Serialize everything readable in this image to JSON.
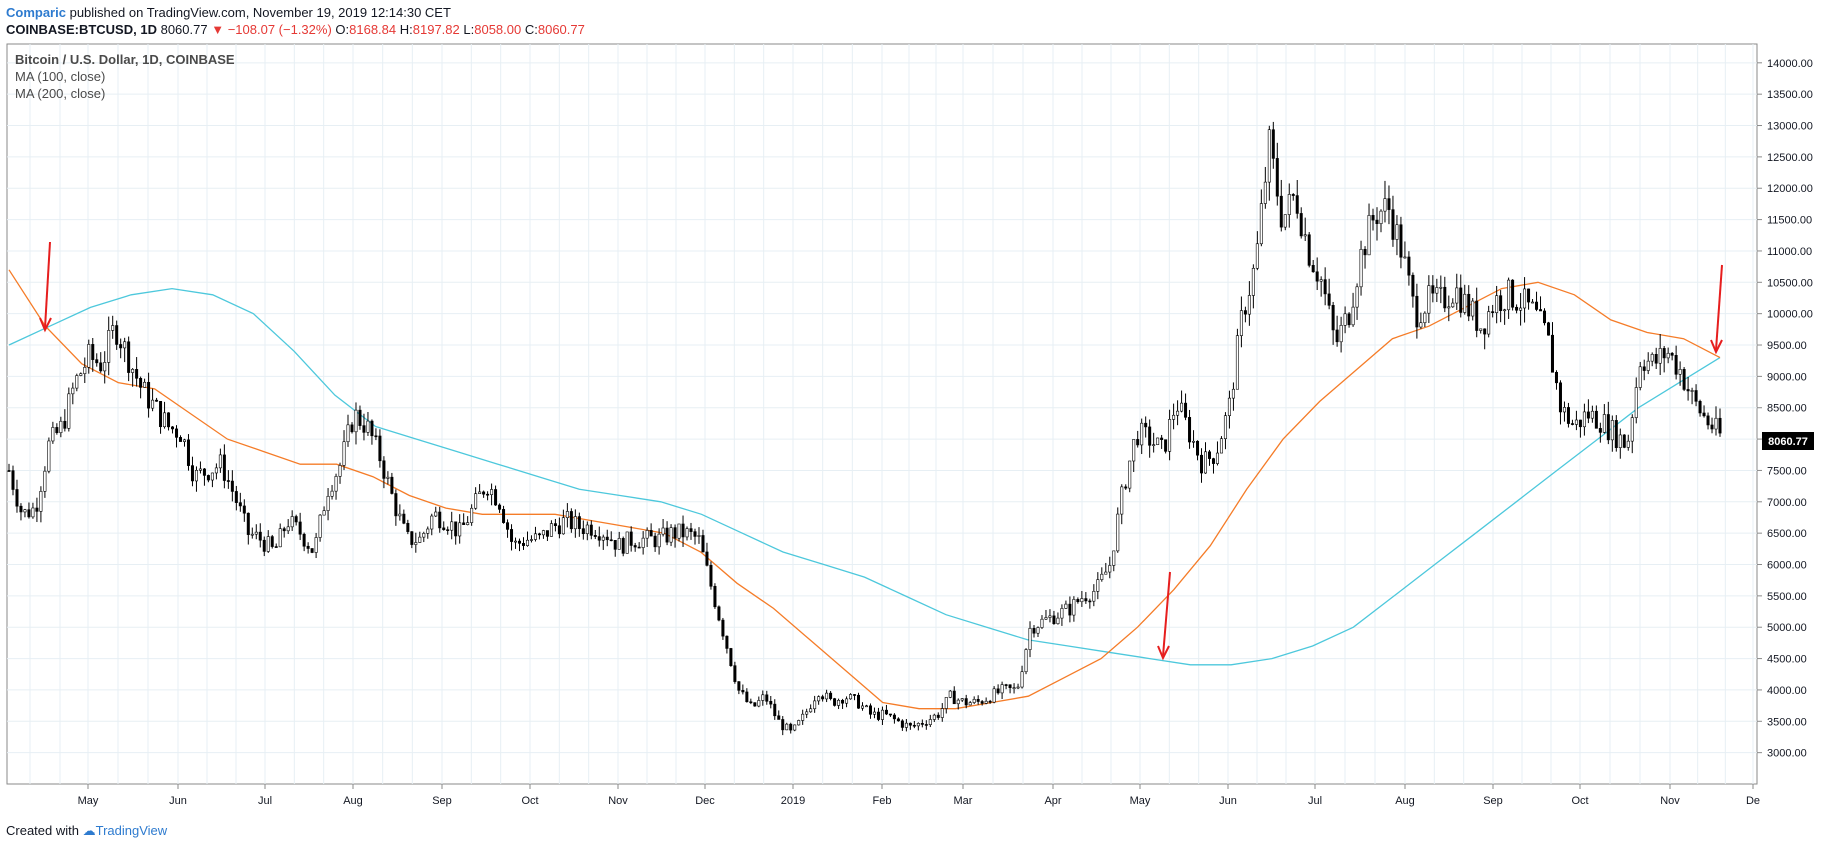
{
  "header": {
    "author": "Comparic",
    "published": "published on TradingView.com, November 19, 2019 12:14:30 CET",
    "symbol": "COINBASE:BTCUSD, 1D",
    "last": "8060.77",
    "change": "▼ −108.07 (−1.32%)",
    "o_label": "O:",
    "o_value": "8168.84",
    "h_label": "H:",
    "h_value": "8197.82",
    "l_label": "L:",
    "l_value": "8058.00",
    "c_label": "C:",
    "c_value": "8060.77"
  },
  "legend": {
    "title": "Bitcoin / U.S. Dollar, 1D, COINBASE",
    "ma1": "MA (100, close)",
    "ma2": "MA (200, close)"
  },
  "footer": {
    "created": "Created with",
    "brand": "TradingView"
  },
  "price_tag": "8060.77",
  "colors": {
    "candles": "#000000",
    "ma100": "#f57c28",
    "ma200": "#4dc8dc",
    "arrows": "#e61e1e",
    "grid": "#e7eff4",
    "tag_bg": "#000000"
  },
  "chart_data": {
    "type": "line",
    "title": "Bitcoin / U.S. Dollar, 1D, COINBASE",
    "x_tick_labels": [
      "May",
      "Jun",
      "Jul",
      "Aug",
      "Sep",
      "Oct",
      "Nov",
      "Dec",
      "2019",
      "Feb",
      "Mar",
      "Apr",
      "May",
      "Jun",
      "Jul",
      "Aug",
      "Sep",
      "Oct",
      "Nov",
      "De"
    ],
    "y_tick_labels": [
      "3000.00",
      "3500.00",
      "4000.00",
      "4500.00",
      "5000.00",
      "5500.00",
      "6000.00",
      "6500.00",
      "7000.00",
      "7500.00",
      "8000.00",
      "8500.00",
      "9000.00",
      "9500.00",
      "10000.00",
      "10500.00",
      "11000.00",
      "11500.00",
      "12000.00",
      "12500.00",
      "13000.00",
      "13500.00",
      "14000.00"
    ],
    "ylim": [
      2500,
      14300
    ],
    "grid": true,
    "series": [
      {
        "name": "Bitcoin / U.S. Dollar, 1D, COINBASE",
        "values": [
          7500,
          6800,
          6900,
          7900,
          8200,
          8900,
          9300,
          9200,
          9800,
          9300,
          8800,
          8500,
          8200,
          8100,
          7400,
          7500,
          7600,
          7100,
          6500,
          6400,
          6200,
          6700,
          6500,
          6200,
          7200,
          7600,
          8400,
          8200,
          7700,
          7000,
          6400,
          6400,
          6800,
          6700,
          6500,
          6900,
          7300,
          7000,
          6300,
          6400,
          6400,
          6600,
          6700,
          6600,
          6600,
          6500,
          6300,
          6400,
          6400,
          6400,
          6500,
          6500,
          6400,
          5600,
          4800,
          4000,
          3700,
          3900,
          3500,
          3300,
          3600,
          4000,
          3800,
          3900,
          3800,
          3600,
          3600,
          3500,
          3400,
          3500,
          3600,
          3900,
          3800,
          3800,
          3900,
          4000,
          4000,
          5000,
          5100,
          5200,
          5300,
          5500,
          5600,
          6000,
          7200,
          8100,
          8000,
          7800,
          8600,
          8100,
          7600,
          7800,
          8500,
          10000,
          10800,
          12700,
          11500,
          11900,
          11000,
          10500,
          9500,
          10000,
          11000,
          11600,
          11700,
          11000,
          10000,
          10200,
          10200,
          10400,
          10100,
          9800,
          10200,
          10300,
          10200,
          10000,
          9600,
          8500,
          8200,
          8400,
          8300,
          8100,
          7900,
          9300,
          9200,
          9400,
          9100,
          8600,
          8300,
          8060
        ],
        "x_range": "2018-04-05 to 2019-11-19"
      },
      {
        "name": "MA (100, close)",
        "values": [
          10700,
          9800,
          9200,
          8900,
          8800,
          8400,
          8000,
          7800,
          7600,
          7600,
          7400,
          7100,
          6900,
          6800,
          6800,
          6800,
          6700,
          6600,
          6500,
          6200,
          5700,
          5300,
          4800,
          4300,
          3800,
          3700,
          3700,
          3800,
          3900,
          4200,
          4500,
          5000,
          5600,
          6300,
          7200,
          8000,
          8600,
          9100,
          9600,
          9800,
          10100,
          10400,
          10500,
          10300,
          9900,
          9700,
          9600,
          9300
        ],
        "x_range": "2018-04-05 to 2019-11-19"
      },
      {
        "name": "MA (200, close)",
        "values": [
          9500,
          9800,
          10100,
          10300,
          10400,
          10300,
          10000,
          9400,
          8700,
          8200,
          8000,
          7800,
          7600,
          7400,
          7200,
          7100,
          7000,
          6800,
          6500,
          6200,
          6000,
          5800,
          5500,
          5200,
          5000,
          4800,
          4700,
          4600,
          4500,
          4400,
          4400,
          4500,
          4700,
          5000,
          5500,
          6000,
          6500,
          7000,
          7500,
          8000,
          8500,
          8900,
          9300
        ],
        "x_range": "2018-04-05 to 2019-11-19"
      }
    ]
  }
}
